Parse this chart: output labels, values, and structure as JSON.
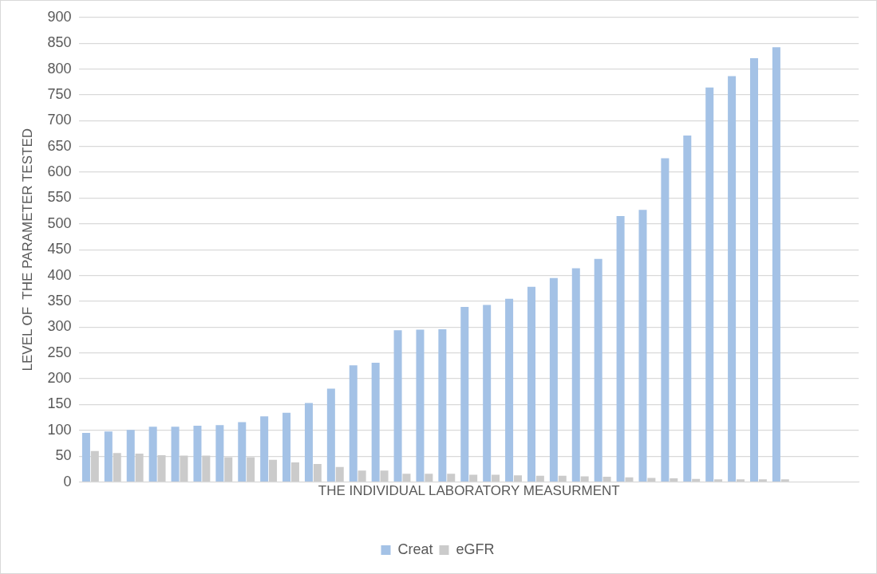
{
  "chart_data": {
    "type": "bar",
    "xlabel": "THE INDIVIDUAL LABORATORY MEASURMENT",
    "ylabel": "LEVEL OF  THE PARAMETER TESTED",
    "categories": [
      null,
      null,
      null,
      null,
      null,
      null,
      null,
      null,
      null,
      null,
      null,
      null,
      null,
      null,
      null,
      null,
      null,
      null,
      null,
      null,
      null,
      null,
      null,
      null,
      null,
      null,
      null,
      null,
      null,
      null,
      null,
      null,
      null,
      null,
      null
    ],
    "series": [
      {
        "name": "Creat",
        "color": "#a4c2e6",
        "values": [
          95,
          98,
          101,
          107,
          107,
          109,
          110,
          116,
          127,
          134,
          153,
          181,
          226,
          231,
          294,
          295,
          296,
          339,
          343,
          355,
          378,
          395,
          414,
          432,
          515,
          527,
          627,
          671,
          764,
          786,
          821,
          842,
          null,
          null,
          null
        ]
      },
      {
        "name": "eGFR",
        "color": "#cbcbcb",
        "values": [
          60,
          56,
          55,
          52,
          51,
          51,
          48,
          48,
          43,
          38,
          35,
          29,
          22,
          22,
          16,
          16,
          16,
          14,
          14,
          13,
          12,
          12,
          11,
          10,
          9,
          8,
          7,
          6,
          5,
          5,
          5,
          5,
          null,
          null,
          null
        ]
      }
    ],
    "ylim": [
      0,
      900
    ],
    "yticks": [
      0,
      50,
      100,
      150,
      200,
      250,
      300,
      350,
      400,
      450,
      500,
      550,
      600,
      650,
      700,
      750,
      800,
      850,
      900
    ],
    "tick_labels": "y",
    "grid": "y",
    "legend": "bottom"
  }
}
